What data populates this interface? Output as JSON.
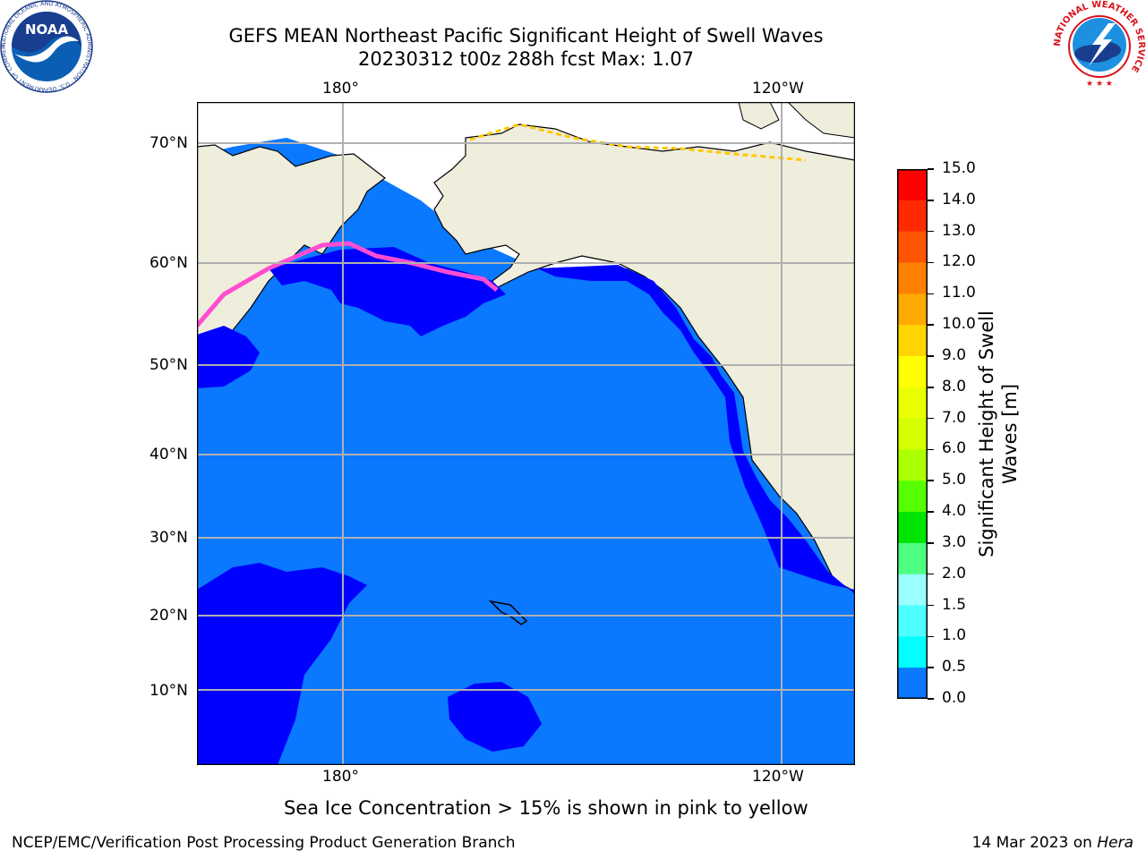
{
  "title": {
    "line1": "GEFS MEAN Northeast Pacific Significant Height of Swell Waves",
    "line2": "20230312 t00z 288h fcst   Max: 1.07"
  },
  "map": {
    "top_lon_labels": [
      "180°",
      "120°W"
    ],
    "bottom_lon_labels": [
      "180°",
      "120°W"
    ],
    "lat_labels": [
      "70°N",
      "60°N",
      "50°N",
      "40°N",
      "30°N",
      "20°N",
      "10°N"
    ],
    "colors": {
      "land": "#efeddc",
      "ice_free": "#ffffff",
      "ocean_low": "#0000ff",
      "ocean_mid": "#0a78ff",
      "grid": "#b0b0b0",
      "coast": "#000000"
    }
  },
  "colorbar": {
    "label_line1": "Significant Height of Swell",
    "label_line2": "Waves [m]",
    "ticks": [
      "15.0",
      "14.0",
      "13.0",
      "12.0",
      "11.0",
      "10.0",
      "9.0",
      "8.0",
      "7.0",
      "6.0",
      "5.0",
      "4.0",
      "3.0",
      "2.0",
      "1.5",
      "1.0",
      "0.5",
      "0.0"
    ],
    "colors": [
      "#ff0000",
      "#ff2a00",
      "#ff5500",
      "#ff8000",
      "#ffaa00",
      "#ffd400",
      "#ffff00",
      "#eaff00",
      "#d5ff00",
      "#aaff00",
      "#55ff00",
      "#00e400",
      "#4dff80",
      "#99ffff",
      "#4dffff",
      "#00ffff",
      "#0a78ff",
      "#0000ff"
    ]
  },
  "note": "Sea Ice Concentration > 15% is shown in pink to yellow",
  "footer": {
    "left": "NCEP/EMC/Verification Post Processing Product Generation Branch",
    "right_date": "14 Mar 2023 on ",
    "right_host": "Hera"
  },
  "logos": {
    "noaa_text": "NOAA",
    "noaa_ring": "NATIONAL OCEANIC AND ATMOSPHERIC ADMINISTRATION · U.S. DEPARTMENT OF COMMERCE",
    "nws_ring": "NATIONAL WEATHER SERVICE"
  }
}
